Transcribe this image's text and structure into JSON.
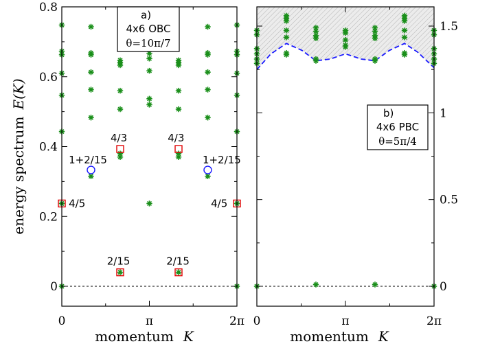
{
  "chart_data": [
    {
      "type": "scatter",
      "panel": "a",
      "xlabel_text": "momentum",
      "xlabel_var": "K",
      "ylabel_text": "energy spectrum",
      "ylabel_var": "E(K)",
      "xlim": [
        0,
        6.2832
      ],
      "ylim": [
        0,
        0.8
      ],
      "yticks": [
        {
          "v": 0,
          "label": "0"
        },
        {
          "v": 0.2,
          "label": "0.2"
        },
        {
          "v": 0.4,
          "label": "0.4"
        },
        {
          "v": 0.6,
          "label": "0.6"
        },
        {
          "v": 0.8,
          "label": "0.8"
        }
      ],
      "xticks": [
        {
          "v": 0,
          "label": "0"
        },
        {
          "v": 3.1416,
          "label": "π"
        },
        {
          "v": 6.2832,
          "label": "2π"
        }
      ],
      "box": {
        "line1": "a)",
        "line2": "4x6 OBC",
        "line3": "θ=10π/7"
      },
      "star_series": {
        "color": "#1a8f1a",
        "x_positions": [
          0,
          1.0472,
          2.0944,
          3.1416,
          4.1888,
          5.236,
          6.2832
        ],
        "points": [
          [
            0,
            0.0
          ],
          [
            0,
            0.237
          ],
          [
            0,
            0.443
          ],
          [
            0,
            0.547
          ],
          [
            0,
            0.61
          ],
          [
            0,
            0.663
          ],
          [
            0,
            0.673
          ],
          [
            0,
            0.748
          ],
          [
            1.0472,
            0.315
          ],
          [
            1.0472,
            0.483
          ],
          [
            1.0472,
            0.563
          ],
          [
            1.0472,
            0.613
          ],
          [
            1.0472,
            0.663
          ],
          [
            1.0472,
            0.668
          ],
          [
            1.0472,
            0.743
          ],
          [
            2.0944,
            0.04
          ],
          [
            2.0944,
            0.37
          ],
          [
            2.0944,
            0.38
          ],
          [
            2.0944,
            0.507
          ],
          [
            2.0944,
            0.56
          ],
          [
            2.0944,
            0.633
          ],
          [
            2.0944,
            0.64
          ],
          [
            2.0944,
            0.647
          ],
          [
            3.1416,
            0.237
          ],
          [
            3.1416,
            0.52
          ],
          [
            3.1416,
            0.537
          ],
          [
            3.1416,
            0.617
          ],
          [
            3.1416,
            0.652
          ],
          [
            3.1416,
            0.667
          ],
          [
            4.1888,
            0.04
          ],
          [
            4.1888,
            0.37
          ],
          [
            4.1888,
            0.38
          ],
          [
            4.1888,
            0.507
          ],
          [
            4.1888,
            0.56
          ],
          [
            4.1888,
            0.633
          ],
          [
            4.1888,
            0.64
          ],
          [
            4.1888,
            0.647
          ],
          [
            5.236,
            0.315
          ],
          [
            5.236,
            0.483
          ],
          [
            5.236,
            0.563
          ],
          [
            5.236,
            0.613
          ],
          [
            5.236,
            0.663
          ],
          [
            5.236,
            0.668
          ],
          [
            5.236,
            0.743
          ],
          [
            6.2832,
            0.0
          ],
          [
            6.2832,
            0.237
          ],
          [
            6.2832,
            0.443
          ],
          [
            6.2832,
            0.547
          ],
          [
            6.2832,
            0.61
          ],
          [
            6.2832,
            0.663
          ],
          [
            6.2832,
            0.673
          ],
          [
            6.2832,
            0.748
          ]
        ]
      },
      "square_series": {
        "color": "#e00000",
        "points": [
          [
            0,
            0.237
          ],
          [
            2.0944,
            0.04
          ],
          [
            2.0944,
            0.393
          ],
          [
            4.1888,
            0.04
          ],
          [
            4.1888,
            0.393
          ],
          [
            6.2832,
            0.237
          ]
        ]
      },
      "circle_series": {
        "color": "#1a1aff",
        "points": [
          [
            1.0472,
            0.333
          ],
          [
            5.236,
            0.333
          ]
        ]
      },
      "annotations": [
        {
          "text": "4/5",
          "x": 0.25,
          "y": 0.237
        },
        {
          "text": "4/5",
          "x": 5.35,
          "y": 0.237
        },
        {
          "text": "4/3",
          "x": 1.75,
          "y": 0.425
        },
        {
          "text": "4/3",
          "x": 3.8,
          "y": 0.425
        },
        {
          "text": "1+2/15",
          "x": 0.25,
          "y": 0.362
        },
        {
          "text": "1+2/15",
          "x": 5.05,
          "y": 0.362
        },
        {
          "text": "2/15",
          "x": 1.62,
          "y": 0.072
        },
        {
          "text": "2/15",
          "x": 3.75,
          "y": 0.072
        }
      ]
    },
    {
      "type": "scatter",
      "panel": "b",
      "xlabel_text": "momentum",
      "xlabel_var": "K",
      "xlim": [
        0,
        6.2832
      ],
      "ylim": [
        -0.04,
        1.6
      ],
      "yticks": [
        {
          "v": 0,
          "label": "0"
        },
        {
          "v": 0.5,
          "label": "0.5"
        },
        {
          "v": 1.0,
          "label": "1"
        },
        {
          "v": 1.5,
          "label": "1.5"
        }
      ],
      "xticks": [
        {
          "v": 0,
          "label": "0"
        },
        {
          "v": 3.1416,
          "label": "π"
        },
        {
          "v": 6.2832,
          "label": "2π"
        }
      ],
      "box": {
        "line1": "b)",
        "line2": "4x6 PBC",
        "line3": "θ=5π/4"
      },
      "continuum_boundary": {
        "color": "#1a1aff",
        "x": [
          0,
          0.5,
          1.0472,
          1.6,
          2.0944,
          2.6,
          3.1416,
          3.7,
          4.1888,
          4.7,
          5.236,
          5.7,
          6.2832
        ],
        "y": [
          1.25,
          1.34,
          1.4,
          1.36,
          1.3,
          1.31,
          1.34,
          1.31,
          1.3,
          1.36,
          1.4,
          1.35,
          1.26
        ]
      },
      "star_series": {
        "color": "#1a8f1a",
        "points": [
          [
            0,
            0.0
          ],
          [
            0,
            1.285
          ],
          [
            0,
            1.31
          ],
          [
            0,
            1.34
          ],
          [
            0,
            1.37
          ],
          [
            0,
            1.45
          ],
          [
            0,
            1.475
          ],
          [
            1.0472,
            1.335
          ],
          [
            1.0472,
            1.345
          ],
          [
            1.0472,
            1.435
          ],
          [
            1.0472,
            1.475
          ],
          [
            1.0472,
            1.53
          ],
          [
            1.0472,
            1.545
          ],
          [
            1.0472,
            1.56
          ],
          [
            2.0944,
            0.01
          ],
          [
            2.0944,
            1.3
          ],
          [
            2.0944,
            1.31
          ],
          [
            2.0944,
            1.43
          ],
          [
            2.0944,
            1.445
          ],
          [
            2.0944,
            1.47
          ],
          [
            2.0944,
            1.49
          ],
          [
            3.1416,
            1.38
          ],
          [
            3.1416,
            1.39
          ],
          [
            3.1416,
            1.42
          ],
          [
            3.1416,
            1.46
          ],
          [
            3.1416,
            1.475
          ],
          [
            4.1888,
            0.01
          ],
          [
            4.1888,
            1.3
          ],
          [
            4.1888,
            1.31
          ],
          [
            4.1888,
            1.43
          ],
          [
            4.1888,
            1.445
          ],
          [
            4.1888,
            1.47
          ],
          [
            4.1888,
            1.49
          ],
          [
            5.236,
            1.335
          ],
          [
            5.236,
            1.345
          ],
          [
            5.236,
            1.435
          ],
          [
            5.236,
            1.475
          ],
          [
            5.236,
            1.53
          ],
          [
            5.236,
            1.545
          ],
          [
            5.236,
            1.56
          ],
          [
            6.2832,
            0.0
          ],
          [
            6.2832,
            1.285
          ],
          [
            6.2832,
            1.31
          ],
          [
            6.2832,
            1.34
          ],
          [
            6.2832,
            1.37
          ],
          [
            6.2832,
            1.45
          ],
          [
            6.2832,
            1.475
          ]
        ]
      }
    }
  ]
}
